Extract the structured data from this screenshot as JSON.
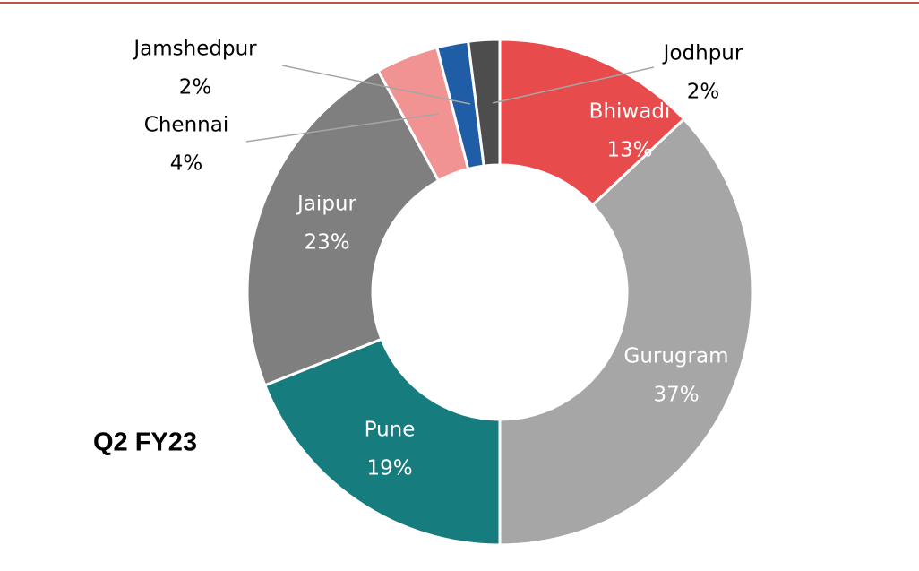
{
  "chart_data": {
    "type": "donut",
    "title": "Q2 FY23",
    "categories": [
      "Bhiwadi",
      "Gurugram",
      "Pune",
      "Jaipur",
      "Chennai",
      "Jamshedpur",
      "Jodhpur"
    ],
    "values": [
      13,
      37,
      19,
      23,
      4,
      2,
      2
    ],
    "value_labels": [
      "13%",
      "37%",
      "19%",
      "23%",
      "4%",
      "2%",
      "2%"
    ],
    "colors": [
      "#e84b4b",
      "#a6a6a6",
      "#177c7e",
      "#7f7f7f",
      "#f19393",
      "#1f5ea6",
      "#4d4d4d"
    ]
  }
}
